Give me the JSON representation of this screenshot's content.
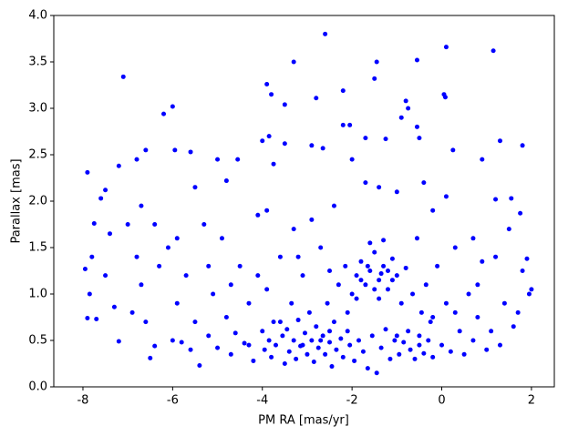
{
  "chart_data": {
    "type": "scatter",
    "xlabel": "PM RA [mas/yr]",
    "ylabel": "Parallax [mas]",
    "color": "#0000ff",
    "grid": false,
    "xlim": [
      -8.65,
      2.51
    ],
    "ylim": [
      0,
      4.0
    ],
    "xticks": [
      -8,
      -6,
      -4,
      -2,
      0,
      2
    ],
    "yticks": [
      {
        "value": 0,
        "label": "0.0"
      },
      {
        "value": 0.5,
        "label": "0.5"
      },
      {
        "value": 1,
        "label": "1.0"
      },
      {
        "value": 1.5,
        "label": "1.5"
      },
      {
        "value": 2,
        "label": "2.0"
      },
      {
        "value": 2.5,
        "label": "2.5"
      },
      {
        "value": 3,
        "label": "3.0"
      },
      {
        "value": 3.5,
        "label": "3.5"
      },
      {
        "value": 4,
        "label": "4.0"
      }
    ],
    "x": [
      -2.6,
      0.1,
      1.15,
      -7.1,
      -3.3,
      -1.45,
      -0.55,
      -1.5,
      -3.9,
      -3.8,
      -2.2,
      0.05,
      0.08,
      -2.8,
      -6.2,
      -6.0,
      -3.5,
      -0.8,
      -0.75,
      -0.9,
      -2.2,
      -2.05,
      -0.55,
      -4.0,
      -3.85,
      -6.6,
      -5.6,
      1.8,
      -7.9,
      -5.95,
      -3.5,
      -2.9,
      -2.65,
      -2.0,
      -1.7,
      -1.25,
      -0.5,
      0.25,
      0.9,
      1.3,
      -7.2,
      -6.8,
      -5.0,
      -4.55,
      -3.75,
      -7.5,
      -7.6,
      -6.7,
      -5.5,
      -4.8,
      -7.75,
      -7.4,
      -7.8,
      -7.95,
      -7.85,
      -7.9,
      -7.7,
      -7.5,
      -7.3,
      -7.2,
      -6.9,
      -6.7,
      -6.6,
      -6.5,
      -6.4,
      -6.3,
      -6.1,
      -6.0,
      -5.9,
      -5.8,
      -5.7,
      -5.6,
      -5.5,
      -5.4,
      -5.3,
      -5.2,
      -5.1,
      -5.0,
      -4.9,
      -4.8,
      -4.7,
      -4.6,
      -4.5,
      -4.4,
      -4.3,
      -4.2,
      -4.1,
      -4.0,
      -3.95,
      -3.9,
      -3.85,
      -3.8,
      -3.75,
      -3.7,
      -3.6,
      -3.55,
      -3.5,
      -3.45,
      -3.4,
      -3.35,
      -3.3,
      -3.25,
      -3.2,
      -3.15,
      -3.1,
      -3.05,
      -3.0,
      -2.95,
      -2.9,
      -2.85,
      -2.8,
      -2.75,
      -2.7,
      -2.65,
      -2.6,
      -2.55,
      -2.5,
      -2.45,
      -2.4,
      -2.35,
      -2.3,
      -2.25,
      -2.2,
      -2.15,
      -2.1,
      -2.05,
      -2.0,
      -1.95,
      -1.9,
      -1.85,
      -1.8,
      -1.75,
      -1.7,
      -1.65,
      -1.6,
      -1.55,
      -1.5,
      -1.45,
      -1.4,
      -1.35,
      -1.3,
      -1.25,
      -1.2,
      -1.15,
      -1.1,
      -1.05,
      -1.0,
      -0.95,
      -0.9,
      -0.85,
      -0.8,
      -0.75,
      -0.7,
      -0.65,
      -0.6,
      -0.55,
      -0.5,
      -0.45,
      -0.4,
      -0.35,
      -0.3,
      -0.25,
      -0.2,
      -0.1,
      0.0,
      0.1,
      0.2,
      0.3,
      0.4,
      0.5,
      0.6,
      0.7,
      0.8,
      0.9,
      1.0,
      1.1,
      1.2,
      1.3,
      1.4,
      1.5,
      1.6,
      1.7,
      1.8,
      1.9,
      1.95,
      2.0,
      1.75,
      1.55,
      1.2,
      0.7,
      -1.7,
      -1.4,
      -1.0,
      -0.4,
      -0.2,
      0.1,
      -2.4,
      -2.9,
      -3.3,
      -3.9,
      -1.6,
      -1.3,
      -1.5,
      -1.2,
      -1.8,
      -1.4,
      -1.1,
      -1.65,
      -1.35,
      -1.9,
      -2.1,
      -2.5,
      -2.7,
      -3.1,
      -3.6,
      -4.3,
      -1.0,
      -0.5,
      -0.2,
      0.3,
      -6.8,
      -5.9,
      -6.4,
      -7.0,
      -5.2,
      -4.7,
      -4.1,
      -3.2,
      -2.5,
      0.8
    ],
    "y": [
      3.8,
      3.66,
      3.62,
      3.34,
      3.5,
      3.5,
      3.52,
      3.32,
      3.26,
      3.15,
      3.19,
      3.15,
      3.12,
      3.11,
      2.94,
      3.02,
      3.04,
      3.08,
      3.0,
      2.9,
      2.82,
      2.82,
      2.8,
      2.65,
      2.7,
      2.55,
      2.53,
      2.6,
      2.31,
      2.55,
      2.62,
      2.6,
      2.57,
      2.45,
      2.68,
      2.67,
      2.68,
      2.55,
      2.45,
      2.65,
      2.38,
      2.45,
      2.45,
      2.45,
      2.4,
      2.12,
      2.03,
      1.95,
      2.15,
      2.22,
      1.76,
      1.65,
      1.4,
      1.27,
      1.0,
      0.74,
      0.73,
      1.2,
      0.86,
      0.49,
      0.8,
      1.1,
      0.7,
      0.31,
      0.44,
      1.3,
      1.5,
      0.5,
      0.9,
      0.48,
      1.2,
      0.4,
      0.7,
      0.23,
      1.75,
      0.55,
      1.0,
      0.42,
      1.6,
      0.75,
      0.35,
      0.58,
      1.3,
      0.47,
      0.9,
      0.28,
      1.85,
      0.6,
      0.4,
      1.05,
      0.5,
      0.32,
      0.7,
      0.45,
      1.4,
      0.55,
      0.25,
      0.62,
      0.38,
      0.9,
      0.5,
      0.3,
      0.72,
      0.44,
      1.2,
      0.58,
      0.35,
      0.8,
      0.5,
      0.27,
      0.65,
      0.42,
      1.5,
      0.55,
      0.35,
      0.9,
      0.48,
      0.22,
      0.7,
      0.4,
      1.1,
      0.52,
      0.32,
      1.3,
      0.6,
      0.45,
      1.0,
      0.28,
      1.2,
      0.5,
      1.35,
      0.38,
      1.1,
      0.2,
      1.25,
      0.55,
      1.45,
      0.15,
      1.15,
      0.42,
      1.3,
      0.62,
      1.05,
      0.3,
      1.38,
      0.5,
      1.2,
      0.35,
      0.9,
      0.48,
      1.28,
      0.6,
      0.4,
      1.0,
      0.3,
      1.6,
      0.55,
      0.8,
      0.36,
      1.1,
      0.5,
      0.7,
      0.32,
      1.3,
      0.45,
      0.9,
      0.38,
      1.5,
      0.6,
      0.35,
      1.0,
      0.5,
      0.75,
      1.35,
      0.4,
      0.6,
      1.4,
      0.45,
      0.9,
      1.7,
      0.65,
      0.8,
      1.25,
      1.38,
      1.0,
      1.05,
      1.87,
      2.03,
      2.02,
      1.6,
      2.2,
      2.15,
      2.1,
      2.2,
      1.9,
      2.05,
      1.95,
      1.8,
      1.7,
      1.9,
      1.55,
      1.58,
      1.05,
      1.25,
      1.15,
      0.95,
      1.15,
      1.3,
      1.22,
      0.95,
      0.8,
      0.6,
      0.5,
      0.45,
      0.7,
      0.45,
      0.55,
      0.45,
      0.75,
      0.8,
      1.4,
      1.6,
      1.75,
      1.75,
      1.3,
      1.1,
      1.2,
      1.4,
      1.25,
      1.1
    ]
  }
}
